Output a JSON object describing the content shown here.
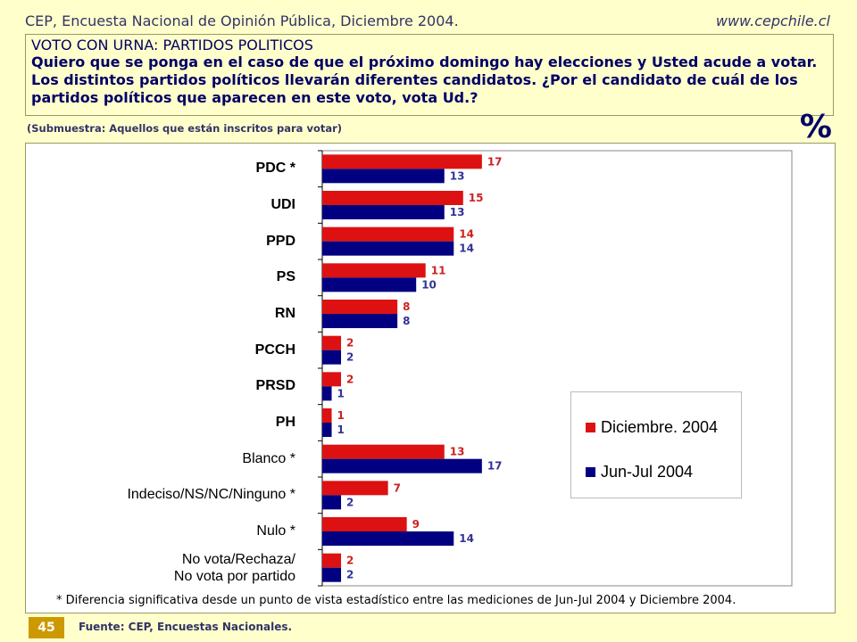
{
  "header": {
    "left": "CEP, Encuesta Nacional de Opinión Pública, Diciembre 2004.",
    "right": "www.cepchile.cl"
  },
  "question": {
    "title": "VOTO CON URNA: PARTIDOS POLITICOS",
    "text": "Quiero que se ponga en el caso de que el próximo domingo hay elecciones y Usted acude a votar. Los distintos partidos políticos llevarán diferentes candidatos. ¿Por el candidato de cuál de los partidos políticos que aparecen en este voto, vota Ud.?"
  },
  "subsample": "(Submuestra: Aquellos que están inscritos para votar)",
  "percent_sign": "%",
  "footnote": "* Diferencia significativa desde un punto de vista estadístico entre las mediciones de Jun-Jul 2004 y Diciembre 2004.",
  "page_number": "45",
  "source": "Fuente: CEP, Encuestas Nacionales.",
  "colors": {
    "dic2004": "#dd1111",
    "junjul2004": "#000080"
  },
  "chart_data": {
    "type": "bar",
    "orientation": "horizontal",
    "categories": [
      "PDC *",
      "UDI",
      "PPD",
      "PS",
      "RN",
      "PCCH",
      "PRSD",
      "PH",
      "Blanco *",
      "Indeciso/NS/NC/Ninguno *",
      "Nulo *",
      "No vota/Rechaza/ No vota por partido"
    ],
    "category_bold": [
      true,
      true,
      true,
      true,
      true,
      true,
      true,
      true,
      false,
      false,
      false,
      false
    ],
    "series": [
      {
        "name": "Diciembre. 2004",
        "color": "#dd1111",
        "values": [
          17,
          15,
          14,
          11,
          8,
          2,
          2,
          1,
          13,
          7,
          9,
          2
        ]
      },
      {
        "name": "Jun-Jul 2004",
        "color": "#000080",
        "values": [
          13,
          13,
          14,
          10,
          8,
          2,
          1,
          1,
          17,
          2,
          14,
          2
        ]
      }
    ],
    "xlim": [
      0,
      50
    ],
    "legend_position": "bottom-right",
    "grid": false
  }
}
